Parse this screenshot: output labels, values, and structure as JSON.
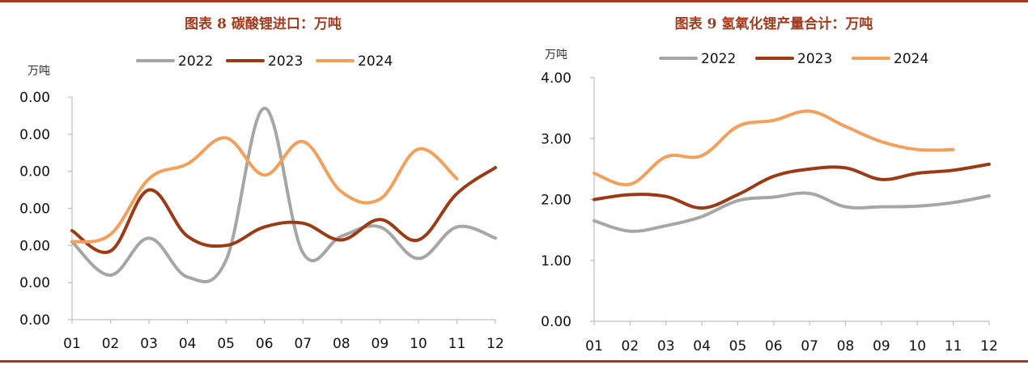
{
  "colors": {
    "rule": "#a33a1d",
    "title": "#a33a1d"
  },
  "chart_data": [
    {
      "type": "line",
      "title": "图表 8 碳酸锂进口：万吨",
      "ylabel": "万吨",
      "categories": [
        "01",
        "02",
        "03",
        "04",
        "05",
        "06",
        "07",
        "08",
        "09",
        "10",
        "11",
        "12"
      ],
      "ytick_labels": [
        "0.00",
        "0.00",
        "0.00",
        "0.00",
        "0.00",
        "0.00",
        "0.00"
      ],
      "ylim": [
        0,
        6
      ],
      "grid": false,
      "legend_position": "top",
      "series": [
        {
          "name": "2022",
          "color": "#a6a6a6",
          "values": [
            2.1,
            1.2,
            2.2,
            1.15,
            1.6,
            5.7,
            1.8,
            2.25,
            2.5,
            1.65,
            2.5,
            2.2
          ]
        },
        {
          "name": "2023",
          "color": "#9c3a15",
          "values": [
            2.4,
            1.85,
            3.5,
            2.25,
            2.0,
            2.5,
            2.6,
            2.15,
            2.7,
            2.15,
            3.4,
            4.1
          ]
        },
        {
          "name": "2024",
          "color": "#f4a05a",
          "values": [
            2.1,
            2.3,
            3.8,
            4.2,
            4.9,
            3.9,
            4.8,
            3.45,
            3.25,
            4.6,
            3.8,
            null
          ]
        }
      ]
    },
    {
      "type": "line",
      "title": "图表 9 氢氧化锂产量合计：万吨",
      "ylabel": "万吨",
      "categories": [
        "01",
        "02",
        "03",
        "04",
        "05",
        "06",
        "07",
        "08",
        "09",
        "10",
        "11",
        "12"
      ],
      "ytick_labels": [
        "0.00",
        "1.00",
        "2.00",
        "3.00",
        "4.00"
      ],
      "ylim": [
        0,
        4
      ],
      "grid": false,
      "legend_position": "top",
      "series": [
        {
          "name": "2022",
          "color": "#a6a6a6",
          "values": [
            1.65,
            1.48,
            1.57,
            1.72,
            1.98,
            2.04,
            2.1,
            1.88,
            1.88,
            1.89,
            1.95,
            2.06
          ]
        },
        {
          "name": "2023",
          "color": "#9c3a15",
          "values": [
            2.0,
            2.08,
            2.05,
            1.86,
            2.08,
            2.38,
            2.5,
            2.52,
            2.33,
            2.43,
            2.48,
            2.58
          ]
        },
        {
          "name": "2024",
          "color": "#f4a05a",
          "values": [
            2.43,
            2.25,
            2.7,
            2.72,
            3.2,
            3.3,
            3.45,
            3.2,
            2.95,
            2.82,
            2.82,
            null
          ]
        }
      ]
    }
  ]
}
